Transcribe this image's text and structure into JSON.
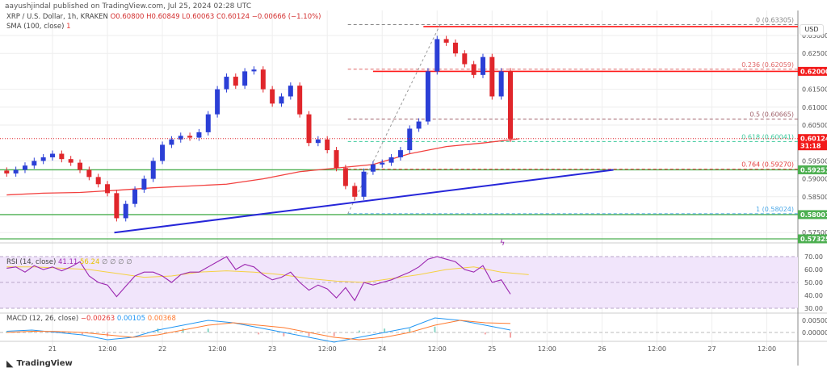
{
  "header": {
    "published": "aayushjindal published on TradingView.com, Jul 25, 2024 02:28 UTC"
  },
  "legend": {
    "symbol": "XRP / U.S. Dollar, 1h, KRAKEN",
    "open": "O0.60800",
    "high": "H0.60849",
    "low": "L0.60063",
    "close": "C0.60124",
    "change": "−0.00666 (−1.10%)",
    "sma": "SMA (100, close)",
    "sma_value": "1",
    "rsi": "RSI (14, close)",
    "rsi_value": "41.11",
    "rsi_ma": "56.24",
    "rsi_extra": "∅ ∅ ∅ ∅",
    "macd": "MACD (12, 26, close)",
    "macd_hist": "−0.00263",
    "macd_line": "0.00105",
    "macd_signal": "0.00368"
  },
  "currency": "USD",
  "brand": "TradingView",
  "colors": {
    "up": "#2b3fd6",
    "down": "#e0262b",
    "sma": "#f2413f",
    "trend": "#2626d9",
    "support": "#4caf50",
    "resistance": "#ff1a1a",
    "rsi": "#9c27b0",
    "rsi_ma": "#f5d142",
    "macd": "#2196f3",
    "signal": "#ff7a2f"
  },
  "price_axis": [
    "0.63000",
    "0.62500",
    "0.61500",
    "0.61000",
    "0.60500",
    "0.59500",
    "0.59000",
    "0.58500",
    "0.57500"
  ],
  "price_tags": [
    {
      "label": "0.62000",
      "price": 0.62,
      "color": "#f21b1b"
    },
    {
      "label": "0.60124",
      "label2": "31:18",
      "price": 0.60124,
      "color": "#f21b1b"
    },
    {
      "label": "0.59251",
      "price": 0.59251,
      "color": "#4caf50"
    },
    {
      "label": "0.58001",
      "price": 0.58001,
      "color": "#4caf50"
    },
    {
      "label": "0.57325",
      "price": 0.57325,
      "color": "#4caf50"
    }
  ],
  "rsi_axis": [
    "70.00",
    "60.00",
    "50.00",
    "40.00",
    "30.00"
  ],
  "macd_axis": [
    "0.00500",
    "0.00000"
  ],
  "time_axis": [
    {
      "label": "21",
      "t": "2024-07-21 00:00"
    },
    {
      "label": "12:00",
      "t": "2024-07-21 12:00"
    },
    {
      "label": "22",
      "t": "2024-07-22 00:00"
    },
    {
      "label": "12:00",
      "t": "2024-07-22 12:00"
    },
    {
      "label": "23",
      "t": "2024-07-23 00:00"
    },
    {
      "label": "12:00",
      "t": "2024-07-23 12:00"
    },
    {
      "label": "24",
      "t": "2024-07-24 00:00"
    },
    {
      "label": "12:00",
      "t": "2024-07-24 12:00"
    },
    {
      "label": "25",
      "t": "2024-07-25 00:00"
    },
    {
      "label": "12:00",
      "t": "2024-07-25 12:00"
    },
    {
      "label": "26",
      "t": "2024-07-26 00:00"
    },
    {
      "label": "12:00",
      "t": "2024-07-26 12:00"
    },
    {
      "label": "27",
      "t": "2024-07-27 00:00"
    },
    {
      "label": "12:00",
      "t": "2024-07-27 12:00"
    }
  ],
  "chart_data": {
    "type": "candlestick",
    "start": "2024-07-20 14:00",
    "step_hours": 2,
    "closes": [
      0.5915,
      0.5925,
      0.5937,
      0.595,
      0.596,
      0.597,
      0.5955,
      0.5945,
      0.5925,
      0.5905,
      0.5885,
      0.586,
      0.579,
      0.583,
      0.587,
      0.59,
      0.595,
      0.5995,
      0.601,
      0.602,
      0.6015,
      0.603,
      0.608,
      0.615,
      0.6185,
      0.616,
      0.62,
      0.6205,
      0.615,
      0.611,
      0.613,
      0.616,
      0.608,
      0.6,
      0.601,
      0.598,
      0.593,
      0.588,
      0.585,
      0.592,
      0.594,
      0.5945,
      0.596,
      0.598,
      0.604,
      0.606,
      0.62,
      0.629,
      0.628,
      0.625,
      0.622,
      0.619,
      0.624,
      0.613,
      0.62,
      0.6012
    ],
    "sma": [
      0.5855,
      0.586,
      0.5862,
      0.5868,
      0.5875,
      0.588,
      0.5885,
      0.59,
      0.592,
      0.593,
      0.594,
      0.597,
      0.599,
      0.6,
      0.6012
    ],
    "sma_step_bars": 4,
    "trendline": {
      "from": [
        "2024-07-21 13:30",
        0.575
      ],
      "to": [
        "2024-07-26 02:30",
        0.5925
      ]
    },
    "horizontal_levels": [
      {
        "price": 0.6325,
        "kind": "resistance",
        "from": "2024-07-24 09:00"
      },
      {
        "price": 0.62,
        "kind": "resistance",
        "from": "2024-07-23 22:00"
      },
      {
        "price": 0.59251,
        "kind": "support"
      },
      {
        "price": 0.58001,
        "kind": "support"
      },
      {
        "price": 0.57325,
        "kind": "support"
      }
    ],
    "fibonacci": {
      "from": "2024-07-23 16:30",
      "levels": [
        {
          "label": "0 (0.63305)",
          "price": 0.63305,
          "color": "#888888"
        },
        {
          "label": "0.236 (0.62059)",
          "price": 0.62059,
          "color": "#e06666"
        },
        {
          "label": "0.5 (0.60665)",
          "price": 0.60665,
          "color": "#a0616a"
        },
        {
          "label": "0.618 (0.60041)",
          "price": 0.60041,
          "color": "#3cc99c"
        },
        {
          "label": "0.764 (0.59270)",
          "price": 0.5927,
          "color": "#e23a3a"
        },
        {
          "label": "1 (0.58024)",
          "price": 0.58024,
          "color": "#4aa8e8"
        }
      ]
    },
    "rsi": [
      61,
      62,
      58,
      63,
      60,
      62,
      59,
      62,
      66,
      55,
      50,
      48,
      39,
      47,
      55,
      58,
      58,
      55,
      50,
      56,
      58,
      58,
      62,
      66,
      70,
      60,
      64,
      62,
      56,
      52,
      54,
      58,
      50,
      44,
      48,
      45,
      38,
      46,
      36,
      50,
      48,
      50,
      52,
      55,
      58,
      62,
      68,
      70,
      68,
      66,
      60,
      58,
      63,
      50,
      52,
      41
    ],
    "rsi_ma": [
      62,
      62,
      61,
      60,
      57,
      54,
      55,
      58,
      59,
      58,
      56,
      53,
      51,
      50,
      53,
      56,
      60,
      62,
      58,
      56
    ],
    "rsi_ma_step_bars": 3,
    "macd": [
      0.0005,
      0.001,
      0,
      -0.001,
      -0.003,
      -0.002,
      0.001,
      0.003,
      0.005,
      0.004,
      0.002,
      0,
      -0.002,
      -0.004,
      -0.002,
      0,
      0.002,
      0.006,
      0.005,
      0.003,
      0.001
    ],
    "signal": [
      0,
      0.0005,
      0.0004,
      0,
      -0.001,
      -0.002,
      -0.001,
      0.001,
      0.003,
      0.004,
      0.003,
      0.002,
      0,
      -0.002,
      -0.003,
      -0.002,
      0,
      0.003,
      0.005,
      0.004,
      0.0037
    ],
    "macd_step_bars": 2.75
  }
}
